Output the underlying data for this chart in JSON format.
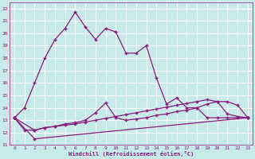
{
  "xlabel": "Windchill (Refroidissement éolien,°C)",
  "background_color": "#c5eae7",
  "grid_color": "#ffffff",
  "line_color": "#8b1a7e",
  "xlim": [
    -0.5,
    23.5
  ],
  "ylim": [
    11,
    22.5
  ],
  "xticks": [
    0,
    1,
    2,
    3,
    4,
    5,
    6,
    7,
    8,
    9,
    10,
    11,
    12,
    13,
    14,
    15,
    16,
    17,
    18,
    19,
    20,
    21,
    22,
    23
  ],
  "yticks": [
    11,
    12,
    13,
    14,
    15,
    16,
    17,
    18,
    19,
    20,
    21,
    22
  ],
  "series1_x": [
    0,
    1,
    2,
    3,
    4,
    5,
    6,
    7,
    8,
    9,
    10,
    11,
    12,
    13,
    14,
    15,
    16,
    17,
    18,
    19,
    20,
    21,
    22,
    23
  ],
  "series1_y": [
    13.2,
    14.0,
    16.0,
    18.0,
    19.5,
    20.4,
    21.7,
    20.5,
    19.5,
    20.4,
    20.1,
    18.4,
    18.4,
    19.0,
    16.4,
    14.3,
    14.8,
    14.0,
    14.0,
    13.2,
    13.2,
    13.2,
    13.2,
    13.2
  ],
  "series2_x": [
    0,
    1,
    2,
    3,
    4,
    5,
    6,
    7,
    8,
    9,
    10,
    11,
    12,
    13,
    14,
    15,
    16,
    17,
    18,
    19,
    20,
    21,
    22,
    23
  ],
  "series2_y": [
    13.2,
    12.2,
    12.2,
    12.4,
    12.5,
    12.7,
    12.8,
    13.0,
    13.6,
    14.4,
    13.2,
    13.0,
    13.1,
    13.2,
    13.4,
    13.5,
    13.7,
    13.8,
    14.0,
    14.3,
    14.5,
    14.5,
    14.2,
    13.2
  ],
  "series3_x": [
    0,
    2,
    3,
    4,
    5,
    6,
    7,
    8,
    9,
    10,
    11,
    12,
    13,
    14,
    15,
    16,
    17,
    18,
    19,
    20,
    21,
    22,
    23
  ],
  "series3_y": [
    13.2,
    12.2,
    12.4,
    12.5,
    12.6,
    12.7,
    12.85,
    13.0,
    13.15,
    13.3,
    13.45,
    13.6,
    13.75,
    13.9,
    14.05,
    14.2,
    14.35,
    14.5,
    14.65,
    14.5,
    13.5,
    13.3,
    13.2
  ],
  "series4_x": [
    0,
    2,
    23
  ],
  "series4_y": [
    13.2,
    11.5,
    13.2
  ]
}
